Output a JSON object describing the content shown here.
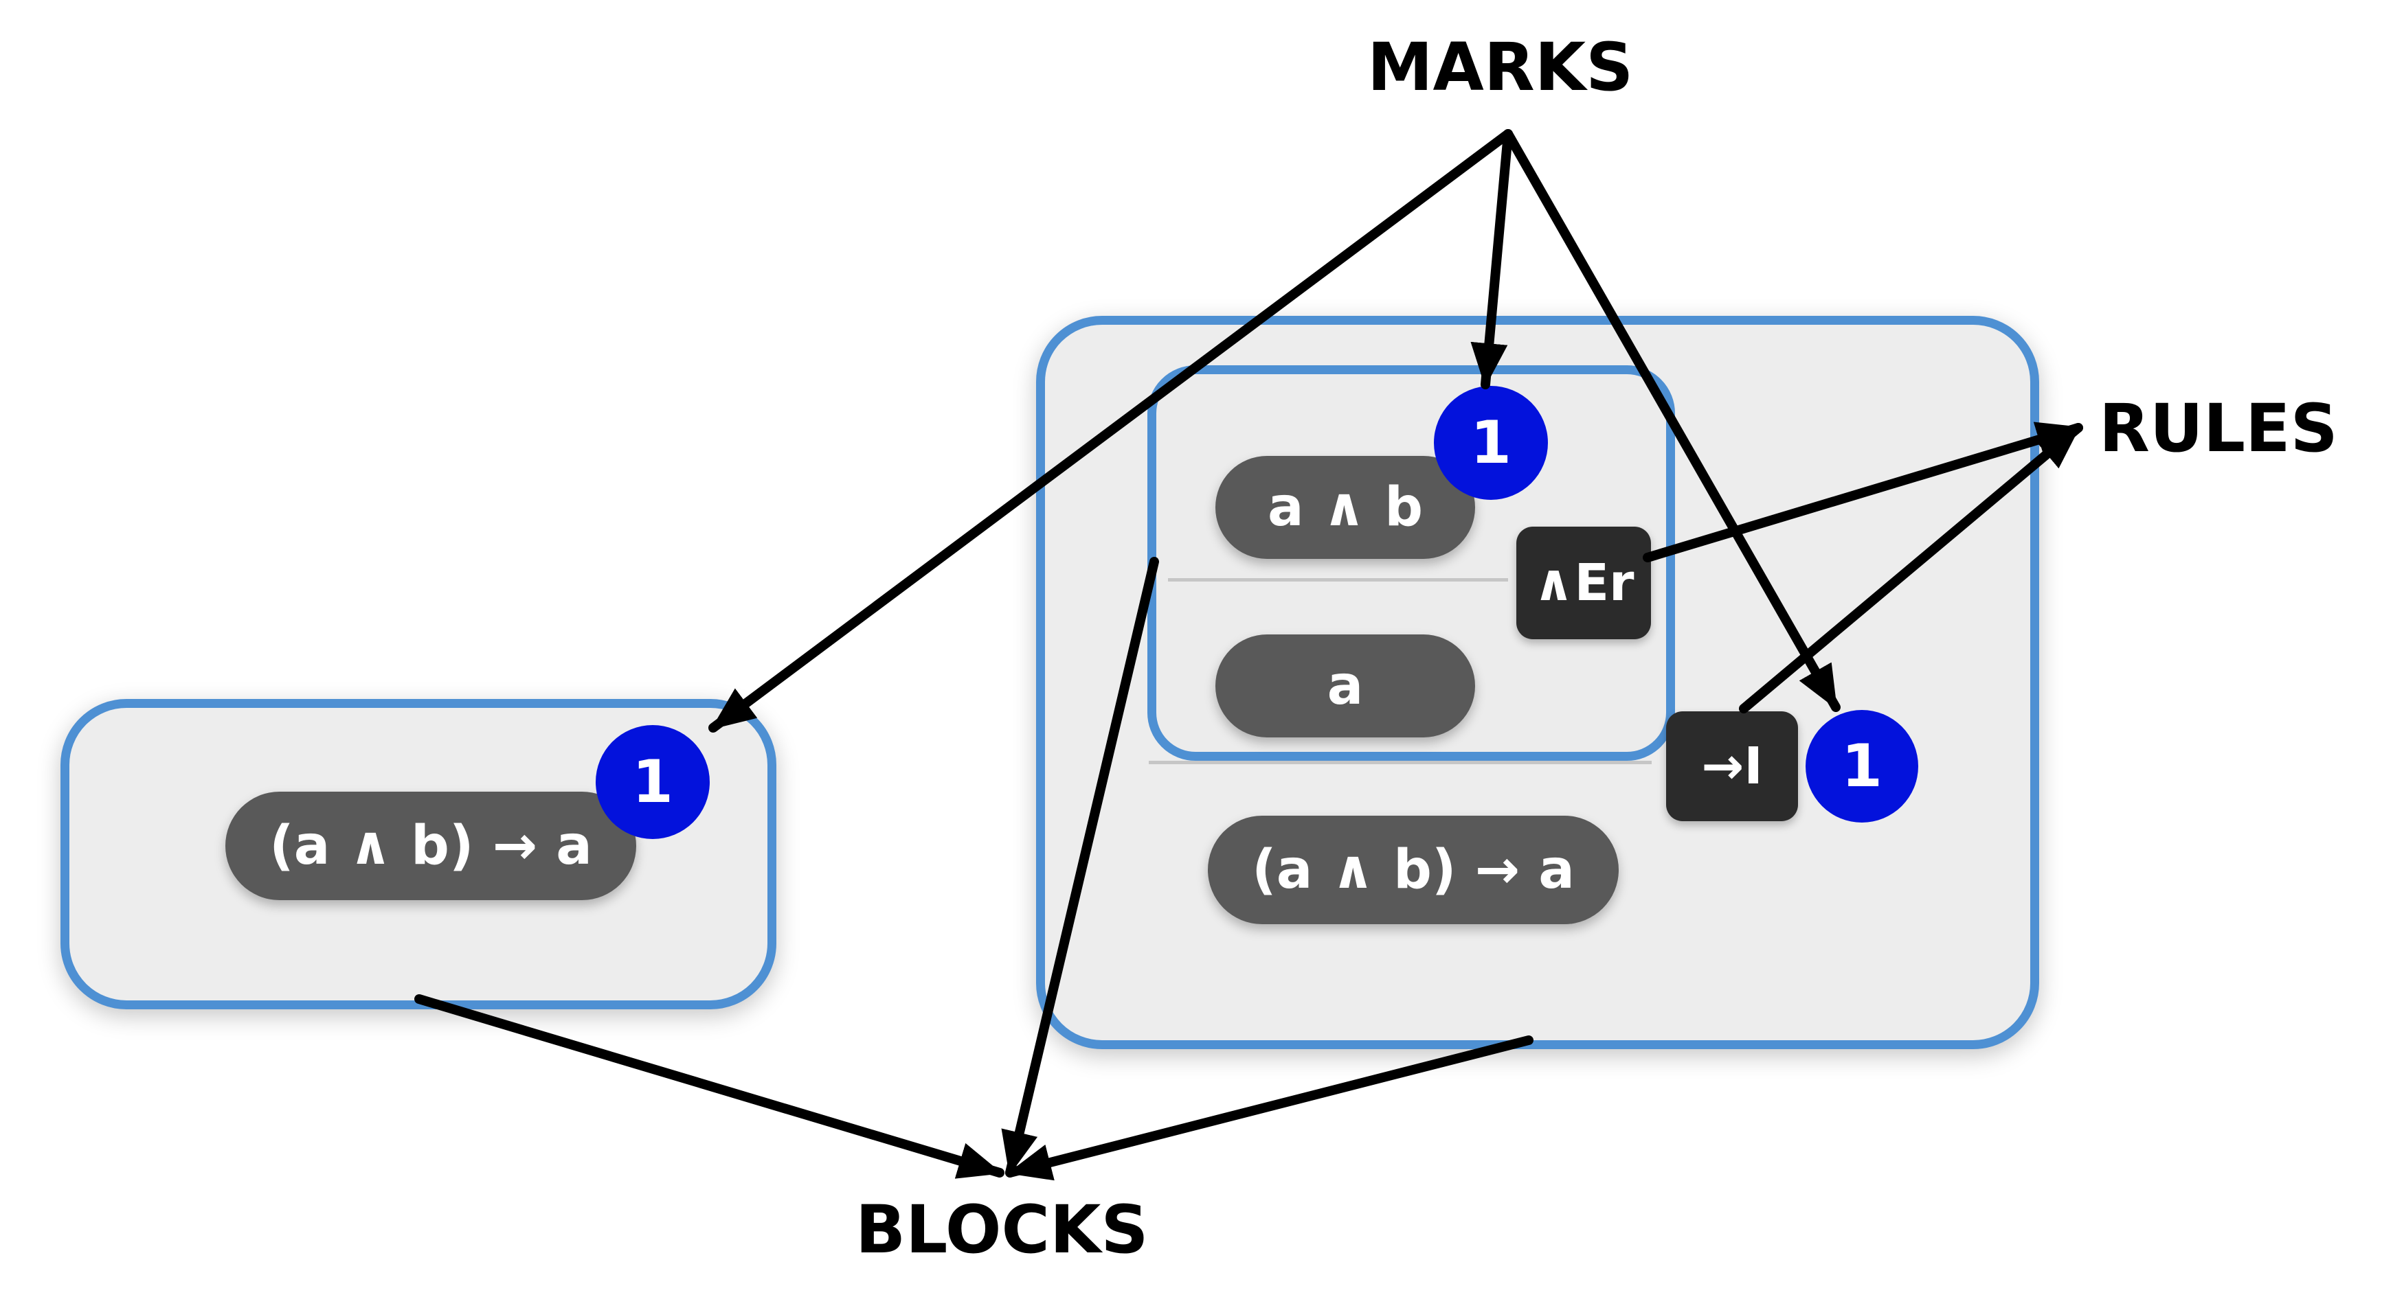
{
  "labels": {
    "marks": "MARKS",
    "rules": "RULES",
    "blocks": "BLOCKS"
  },
  "left_block": {
    "formula": "(a ∧ b) → a",
    "mark": "1"
  },
  "right_block": {
    "inner_block": {
      "premise": "a ∧ b",
      "conclusion": "a",
      "mark": "1",
      "rule": "∧Er"
    },
    "conclusion": "(a ∧ b) → a",
    "rule": "→I",
    "mark": "1"
  },
  "colors": {
    "block_border": "#4e90d3",
    "block_fill": "#ededed",
    "pill": "#595959",
    "rule_box": "#2b2b2b",
    "mark": "#0312dc",
    "arrow": "#000000"
  }
}
